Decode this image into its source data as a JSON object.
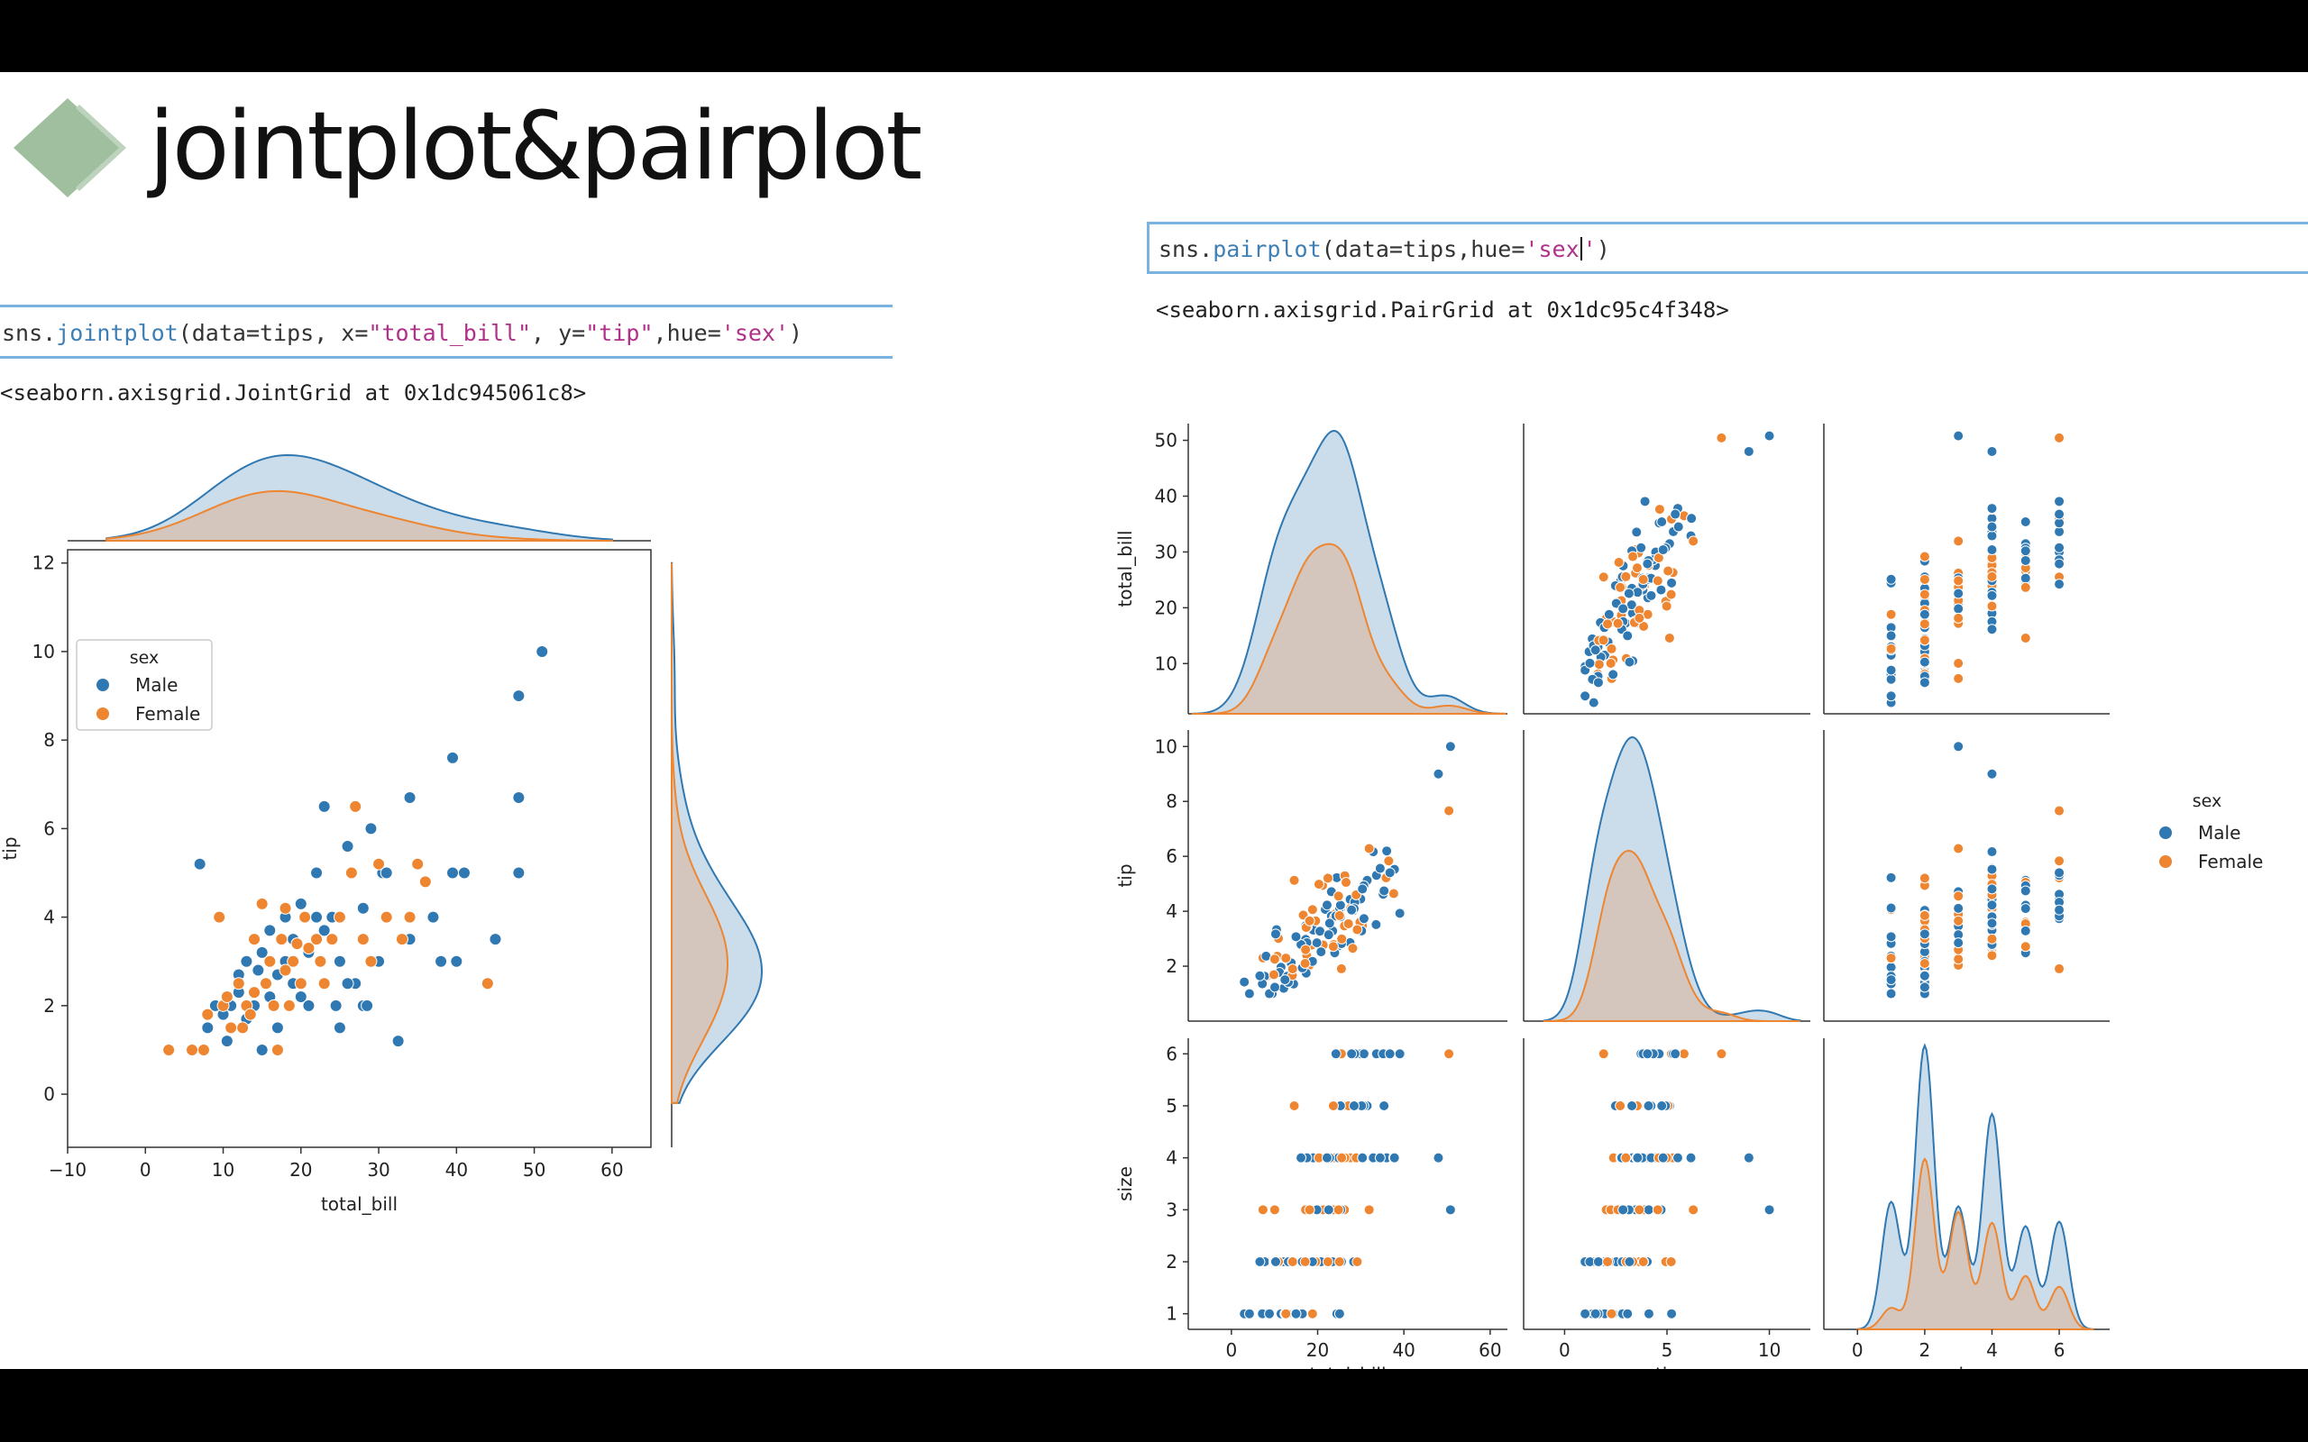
{
  "slide": {
    "title": "jointplot&pairplot",
    "bullet_color": "#9fbf9f"
  },
  "jointplot_cell": {
    "code_prefix": "sns.",
    "code_fn": "jointplot",
    "code_args_1": "(data=tips, x=",
    "code_str_x": "\"total_bill\"",
    "code_args_2": ", y=",
    "code_str_y": "\"tip\"",
    "code_args_3": ",hue=",
    "code_str_hue": "'sex'",
    "code_close": ")",
    "output": "<seaborn.axisgrid.JointGrid at 0x1dc945061c8>"
  },
  "pairplot_cell": {
    "code_prefix": "sns.",
    "code_fn": "pairplot",
    "code_args_1": "(data=tips,hue=",
    "code_str_hue_a": "'sex",
    "code_str_hue_b": "'",
    "code_close": ")",
    "output": "<seaborn.axisgrid.PairGrid at 0x1dc95c4f348>"
  },
  "chart_data": [
    {
      "type": "scatter",
      "name_key": "jointplot",
      "xlabel": "total_bill",
      "ylabel": "tip",
      "xlim": [
        -10,
        65
      ],
      "ylim": [
        -1.2,
        12.3
      ],
      "xticks": [
        -10,
        0,
        10,
        20,
        30,
        40,
        50,
        60
      ],
      "yticks": [
        0,
        2,
        4,
        6,
        8,
        10,
        12
      ],
      "legend": {
        "title": "sex",
        "placement": "top-left",
        "entries": [
          "Male",
          "Female"
        ]
      },
      "marginals": "kde",
      "series": [
        {
          "name": "Male",
          "color": "#2f78b1",
          "points": [
            [
              51,
              10
            ],
            [
              48,
              9
            ],
            [
              39.5,
              7.6
            ],
            [
              48,
              6.7
            ],
            [
              23,
              6.5
            ],
            [
              34,
              6.7
            ],
            [
              7,
              5.2
            ],
            [
              29,
              6
            ],
            [
              26,
              5.6
            ],
            [
              22,
              5
            ],
            [
              30.5,
              5
            ],
            [
              31,
              5
            ],
            [
              48,
              5
            ],
            [
              39.5,
              5
            ],
            [
              41,
              5
            ],
            [
              37,
              4
            ],
            [
              28,
              4.2
            ],
            [
              24,
              4
            ],
            [
              34,
              3.5
            ],
            [
              45,
              3.5
            ],
            [
              38,
              3
            ],
            [
              40,
              3
            ],
            [
              22,
              3.5
            ],
            [
              18,
              3
            ],
            [
              30,
              3
            ],
            [
              27,
              2.5
            ],
            [
              12,
              2.7
            ],
            [
              14,
              2
            ],
            [
              32.5,
              1.2
            ],
            [
              25,
              1.5
            ],
            [
              17,
              1.5
            ],
            [
              9,
              2
            ],
            [
              11,
              1.5
            ],
            [
              8,
              1.5
            ],
            [
              13,
              1.7
            ],
            [
              20,
              2.2
            ],
            [
              16,
              2.2
            ],
            [
              21,
              3.2
            ],
            [
              19,
              3.5
            ],
            [
              15,
              3.2
            ],
            [
              17,
              2.7
            ],
            [
              23,
              3.7
            ],
            [
              24.5,
              2
            ],
            [
              26,
              2.5
            ],
            [
              28,
              2
            ],
            [
              18,
              4
            ],
            [
              20,
              4.3
            ],
            [
              22,
              4
            ],
            [
              16,
              3.7
            ],
            [
              12,
              2.3
            ],
            [
              10,
              1.8
            ],
            [
              14.5,
              2.8
            ],
            [
              21,
              2
            ],
            [
              19,
              2.5
            ],
            [
              13,
              3
            ],
            [
              11,
              2
            ],
            [
              25,
              3
            ],
            [
              28.5,
              2
            ],
            [
              10.5,
              1.2
            ],
            [
              15,
              1
            ]
          ]
        },
        {
          "name": "Female",
          "color": "#ee8530",
          "points": [
            [
              3,
              1
            ],
            [
              6,
              1
            ],
            [
              7.5,
              1
            ],
            [
              9.5,
              4
            ],
            [
              15,
              4.3
            ],
            [
              17,
              1
            ],
            [
              18,
              4.2
            ],
            [
              20.5,
              4
            ],
            [
              27,
              6.5
            ],
            [
              35,
              5.2
            ],
            [
              36,
              4.8
            ],
            [
              44,
              2.5
            ],
            [
              10,
              2
            ],
            [
              12,
              2.5
            ],
            [
              13,
              2
            ],
            [
              14,
              2.3
            ],
            [
              16,
              3
            ],
            [
              17.5,
              3.5
            ],
            [
              19,
              3
            ],
            [
              21,
              3.3
            ],
            [
              22,
              3.5
            ],
            [
              25,
              4
            ],
            [
              29,
              3
            ],
            [
              31,
              4
            ],
            [
              34,
              4
            ],
            [
              11,
              1.5
            ],
            [
              13.5,
              1.8
            ],
            [
              15.5,
              2.5
            ],
            [
              18.5,
              2
            ],
            [
              20,
              2.5
            ],
            [
              23,
              2.5
            ],
            [
              24,
              3.5
            ],
            [
              26.5,
              5
            ],
            [
              30,
              5.2
            ],
            [
              33,
              3.5
            ],
            [
              8,
              1.8
            ],
            [
              10.5,
              2.2
            ],
            [
              12.5,
              1.5
            ],
            [
              16.5,
              2
            ],
            [
              19.5,
              3.4
            ],
            [
              22.5,
              3
            ],
            [
              28,
              3.5
            ],
            [
              14,
              3.5
            ],
            [
              18,
              2.8
            ]
          ]
        }
      ]
    },
    {
      "type": "scatter",
      "name_key": "pairplot",
      "variables": [
        "total_bill",
        "tip",
        "size"
      ],
      "diagonal": "kde",
      "tick_labels": {
        "total_bill": [
          0,
          20,
          40,
          60
        ],
        "total_bill_y": [
          10,
          20,
          30,
          40,
          50
        ],
        "tip": [
          0,
          5,
          10
        ],
        "tip_y": [
          2,
          4,
          6,
          8,
          10
        ],
        "size": [
          0,
          2,
          4,
          6
        ],
        "size_y": [
          1,
          2,
          3,
          4,
          5,
          6
        ]
      },
      "legend": {
        "title": "sex",
        "placement": "right",
        "entries": [
          "Male",
          "Female"
        ]
      },
      "series": [
        {
          "name": "Male",
          "color": "#2f78b1"
        },
        {
          "name": "Female",
          "color": "#ee8530"
        }
      ]
    }
  ]
}
